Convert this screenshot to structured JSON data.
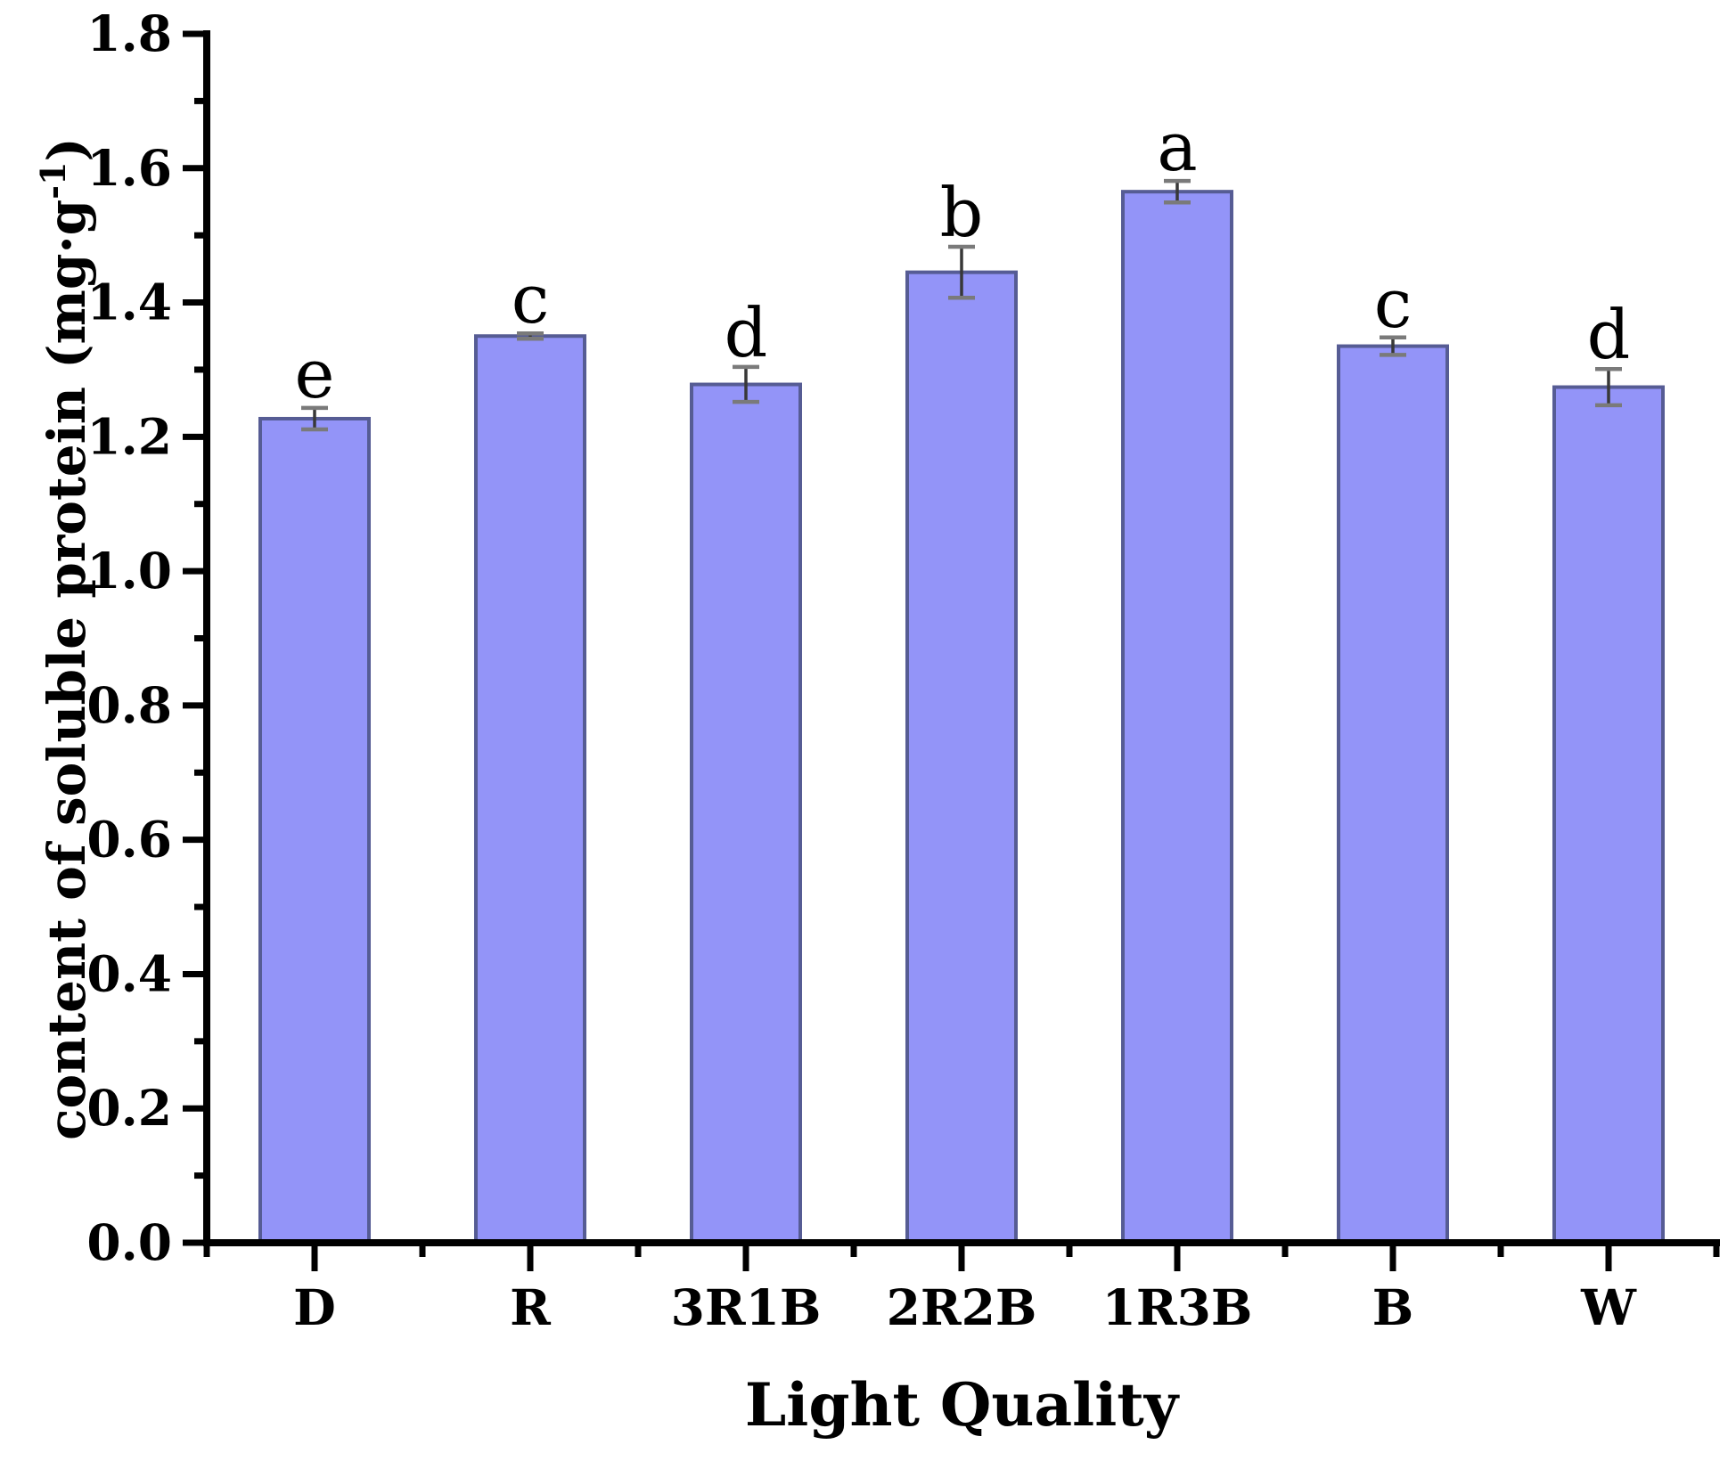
{
  "chart_data": {
    "type": "bar",
    "title": "",
    "xlabel": "Light Quality",
    "ylabel_text": "content of soluble protein",
    "ylabel_unit_open": "(",
    "ylabel_unit": "mg·g",
    "ylabel_unit_exponent": "-1",
    "ylabel_unit_close": ")",
    "categories": [
      "D",
      "R",
      "3R1B",
      "2R2B",
      "1R3B",
      "B",
      "W"
    ],
    "values": [
      1.227,
      1.35,
      1.278,
      1.445,
      1.565,
      1.335,
      1.274
    ],
    "errors": [
      0.016,
      0.004,
      0.026,
      0.038,
      0.016,
      0.013,
      0.027
    ],
    "sig_letters": [
      "e",
      "c",
      "d",
      "b",
      "a",
      "c",
      "d"
    ],
    "ylim": [
      0.0,
      1.8
    ],
    "ytick_step": 0.2,
    "yminor_step": 0.1,
    "ytick_labels": [
      "0.0",
      "0.2",
      "0.4",
      "0.6",
      "0.8",
      "1.0",
      "1.2",
      "1.4",
      "1.6",
      "1.8"
    ],
    "grid": false,
    "legend_position": "none",
    "colors": {
      "background": "#FFFFFF",
      "bar_fill": "#9394F8",
      "bar_border": "#565C94",
      "error_line": "#383838",
      "error_cap": "#7A7A7A",
      "axis": "#000000",
      "text": "#000000"
    }
  }
}
